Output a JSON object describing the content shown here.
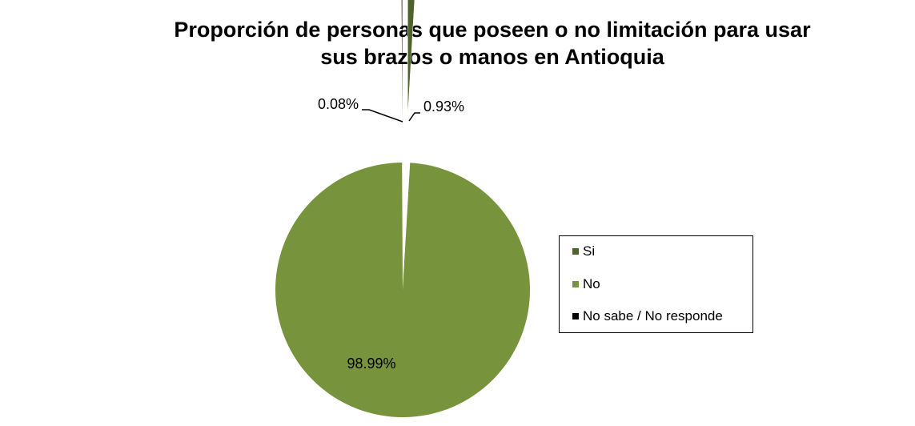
{
  "chart_data": {
    "type": "pie",
    "title": "Proporción de personas que poseen o no limitación para usar sus brazos o manos en Antioquia",
    "title_lines": [
      "Proporción de personas que poseen o no limitación para usar",
      "sus brazos o manos en Antioquia"
    ],
    "categories": [
      "Si",
      "No",
      "No sabe / No responde"
    ],
    "values": [
      0.93,
      98.99,
      0.08
    ],
    "labels": [
      "0.93%",
      "98.99%",
      "0.08%"
    ],
    "colors": [
      "#4f6228",
      "#77933c",
      "#000000"
    ],
    "unit": "%",
    "legend_position": "right",
    "exploded_slices": [
      "Si",
      "No sabe / No responde"
    ]
  }
}
